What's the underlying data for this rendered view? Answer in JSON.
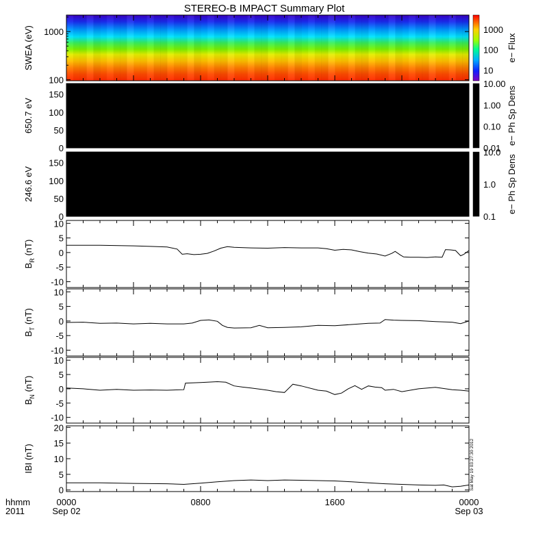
{
  "title": "STEREO-B IMPACT Summary Plot",
  "timestamp": "Sat May 19 03:27:30 2012",
  "time_axis": {
    "row_labels": [
      "hhmm",
      "2011"
    ],
    "ticks": [
      {
        "hours": 0,
        "time": "0000",
        "date": "Sep 02"
      },
      {
        "hours": 8,
        "time": "0800",
        "date": ""
      },
      {
        "hours": 16,
        "time": "1600",
        "date": ""
      },
      {
        "hours": 24,
        "time": "0000",
        "date": "Sep 03"
      }
    ],
    "range_hours": [
      0,
      24
    ]
  },
  "chart_data": [
    {
      "type": "heatmap",
      "ylabel": "SWEA (eV)",
      "yscale": "log",
      "ylim": [
        95,
        2200
      ],
      "yticks": [
        {
          "value": 100,
          "label": "100"
        },
        {
          "value": 1000,
          "label": "1000"
        }
      ],
      "colorbar": {
        "label": "e− Flux",
        "scale": "log",
        "range": [
          3,
          5000
        ],
        "ticks": [
          {
            "value": 10,
            "label": "10"
          },
          {
            "value": 100,
            "label": "100"
          },
          {
            "value": 1000,
            "label": "1000"
          }
        ]
      }
    },
    {
      "type": "heatmap",
      "ylabel": "650.7 eV",
      "ylim": [
        0,
        180
      ],
      "yticks": [
        {
          "value": 0,
          "label": "0"
        },
        {
          "value": 50,
          "label": "50"
        },
        {
          "value": 100,
          "label": "100"
        },
        {
          "value": 150,
          "label": "150"
        }
      ],
      "fill_color": "#000000",
      "colorbar": {
        "label": "e− Ph Sp Dens",
        "scale": "log",
        "range": [
          0.01,
          10
        ],
        "ticks": [
          {
            "value": 0.01,
            "label": "0.01"
          },
          {
            "value": 0.1,
            "label": "0.10"
          },
          {
            "value": 1,
            "label": "1.00"
          },
          {
            "value": 10,
            "label": "10.00"
          }
        ]
      }
    },
    {
      "type": "heatmap",
      "ylabel": "246.6 eV",
      "ylim": [
        0,
        180
      ],
      "yticks": [
        {
          "value": 0,
          "label": "0"
        },
        {
          "value": 50,
          "label": "50"
        },
        {
          "value": 100,
          "label": "100"
        },
        {
          "value": 150,
          "label": "150"
        }
      ],
      "fill_color": "#000000",
      "colorbar": {
        "label": "e− Ph Sp Dens",
        "scale": "log",
        "range": [
          0.1,
          10
        ],
        "ticks": [
          {
            "value": 0.1,
            "label": "0.1"
          },
          {
            "value": 1,
            "label": "1.0"
          },
          {
            "value": 10,
            "label": "10.0"
          }
        ]
      }
    },
    {
      "type": "line",
      "ylabel_main": "B",
      "ylabel_sub": "R",
      "ylabel_unit": " (nT)",
      "ylim": [
        -12,
        11
      ],
      "yticks": [
        -10,
        -5,
        0,
        5,
        10
      ],
      "x": [
        0,
        2,
        4,
        5,
        6,
        6.6,
        6.9,
        7.2,
        7.6,
        8,
        8.4,
        8.8,
        9.2,
        9.6,
        10,
        11,
        12,
        13,
        14,
        15,
        15.5,
        16,
        16.5,
        17,
        17.5,
        18,
        18.5,
        19,
        19.4,
        19.6,
        19.9,
        20.1,
        20.5,
        21,
        21.5,
        22,
        22.4,
        22.6,
        22.9,
        23.2,
        23.5,
        23.7,
        24
      ],
      "y": [
        2.5,
        2.5,
        2.3,
        2.1,
        1.9,
        1.2,
        -0.6,
        -0.4,
        -0.7,
        -0.6,
        -0.3,
        0.5,
        1.5,
        2.0,
        1.8,
        1.6,
        1.5,
        1.7,
        1.6,
        1.6,
        1.3,
        0.8,
        1.1,
        0.9,
        0.3,
        -0.2,
        -0.5,
        -1.2,
        -0.3,
        0.4,
        -0.8,
        -1.5,
        -1.6,
        -1.6,
        -1.7,
        -1.5,
        -1.6,
        1.0,
        0.9,
        0.7,
        -1.1,
        -0.6,
        0.7
      ]
    },
    {
      "type": "line",
      "ylabel_main": "B",
      "ylabel_sub": "T",
      "ylabel_unit": " (nT)",
      "ylim": [
        -12,
        11
      ],
      "yticks": [
        -10,
        -5,
        0,
        5,
        10
      ],
      "x": [
        0,
        1,
        2,
        3,
        4,
        5,
        6,
        7,
        7.5,
        8,
        8.5,
        9,
        9.3,
        9.6,
        10,
        11,
        11.5,
        12,
        13,
        14,
        15,
        16,
        17,
        18,
        18.7,
        19,
        19.5,
        20,
        21,
        22,
        23,
        23.5,
        24
      ],
      "y": [
        -0.5,
        -0.4,
        -0.8,
        -0.7,
        -1.0,
        -0.8,
        -1.0,
        -1.0,
        -0.7,
        0.2,
        0.4,
        -0.1,
        -1.5,
        -2.2,
        -2.4,
        -2.3,
        -1.5,
        -2.3,
        -2.2,
        -2.0,
        -1.5,
        -1.6,
        -1.2,
        -0.8,
        -0.7,
        0.5,
        0.3,
        0.2,
        0.1,
        -0.2,
        -0.4,
        -0.9,
        0.0
      ]
    },
    {
      "type": "line",
      "ylabel_main": "B",
      "ylabel_sub": "N",
      "ylabel_unit": " (nT)",
      "ylim": [
        -12,
        11
      ],
      "yticks": [
        -10,
        -5,
        0,
        5,
        10
      ],
      "x": [
        0,
        1,
        2,
        3,
        4,
        5,
        6,
        7,
        7.1,
        8,
        9,
        9.5,
        10,
        10.5,
        11,
        12,
        12.5,
        13,
        13.5,
        14,
        15,
        15.5,
        16,
        16.4,
        16.8,
        17.2,
        17.6,
        18,
        18.4,
        18.8,
        19,
        19.5,
        20,
        21,
        22,
        23,
        23.5,
        24
      ],
      "y": [
        0.3,
        0.0,
        -0.5,
        -0.2,
        -0.5,
        -0.4,
        -0.5,
        -0.3,
        2.0,
        2.2,
        2.5,
        2.3,
        1.0,
        0.6,
        0.3,
        -0.5,
        -1.0,
        -1.3,
        1.6,
        1.0,
        -0.5,
        -0.8,
        -2.0,
        -1.5,
        0.0,
        1.1,
        -0.2,
        1.0,
        0.6,
        0.4,
        -0.5,
        -0.2,
        -1.0,
        0.0,
        0.5,
        -0.3,
        -0.5,
        -0.8
      ]
    },
    {
      "type": "line",
      "ylabel_main": "IBI (nT)",
      "ylim": [
        -0.5,
        20.5
      ],
      "yticks": [
        0,
        5,
        10,
        15,
        20
      ],
      "x": [
        0,
        2,
        4,
        6,
        7,
        8,
        9,
        10,
        11,
        12,
        13,
        14,
        15,
        16,
        17,
        18,
        19,
        20,
        21,
        22,
        22.5,
        23,
        23.5,
        24
      ],
      "y": [
        2.3,
        2.3,
        2.1,
        2.0,
        1.8,
        2.2,
        2.6,
        3.0,
        3.2,
        3.0,
        3.2,
        3.1,
        3.0,
        2.9,
        2.6,
        2.3,
        2.0,
        1.8,
        1.6,
        1.5,
        1.6,
        1.0,
        1.2,
        1.6
      ]
    }
  ]
}
